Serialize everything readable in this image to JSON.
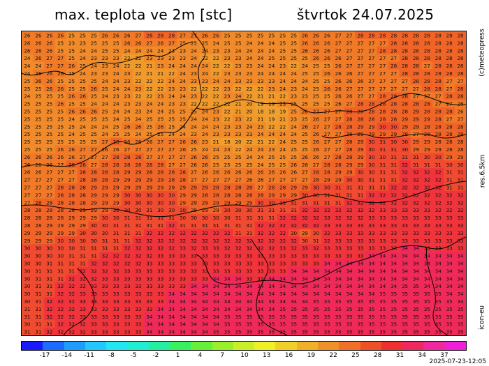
{
  "header": {
    "title": "max. teplota ve 2m [stc]",
    "date": "štvrtok 24.07.2025"
  },
  "side_labels": {
    "copyright": "(c)meteopress",
    "resolution": "res.6.5km",
    "model": "icon-eu"
  },
  "timestamp": "2025-07-23-12:05",
  "legend": {
    "tick_labels": [
      "-17",
      "-14",
      "-11",
      "-8",
      "-5",
      "-2",
      "1",
      "4",
      "7",
      "10",
      "13",
      "16",
      "19",
      "22",
      "25",
      "28",
      "31",
      "34",
      "37"
    ],
    "colors": [
      "#1a1aff",
      "#1e6bff",
      "#1f9dff",
      "#22c8ff",
      "#22e6f0",
      "#21eed0",
      "#22f0a0",
      "#38f060",
      "#66f03a",
      "#99f02a",
      "#c8f028",
      "#f0f028",
      "#f0d028",
      "#f0b028",
      "#f09028",
      "#f07028",
      "#f05028",
      "#f03030",
      "#f02860",
      "#f028a0",
      "#f020d8"
    ]
  },
  "map_data": {
    "rows": [
      "26 26 26 26 25 25 25 26 26 26 27 28 28 28 27 27 26 26 25 25 25 25 25 25 25 26 26 26 27 27 28 28 28 28 28 28 28 28 28 28",
      "26 26 26 25 23 23 25 25 25 26 26 27 26 27 25 25 25 24 25 25 24 24 24 25 25 26 26 26 27 27 27 27 27 28 28 28 28 28 28 28",
      "26 26 26 25 25 24 24 25 25 24 24 24 24 23 23 24 24 23 23 24 24 24 24 25 25 26 26 26 27 27 27 27 28 28 28 28 28 28 28 28",
      "24 26 27 27 25 24 23 23 23 22 22 23 23 23 23 24 22 22 23 23 24 24 25 25 25 25 26 26 26 27 27 27 27 27 28 28 28 28 28 28",
      "24 24 27 27 26 25 24 23 24 22 22 21 23 24 24 24 24 22 22 23 23 24 24 23 22 24 25 25 26 27 27 27 27 28 28 28 27 28 28 28",
      "24 26 26 26 25 24 23 23 24 23 22 21 21 22 24 23 24 22 23 23 23 24 24 24 24 25 25 26 26 26 27 27 27 27 28 28 28 28 28 28",
      "25 26 26 25 25 25 25 24 24 23 22 22 22 24 24 23 23 24 24 23 23 23 23 24 24 24 25 25 26 26 26 27 27 27 27 28 28 28 27 27",
      "25 25 26 26 25 25 26 25 24 24 23 22 22 23 23 22 22 22 23 22 22 22 23 24 23 24 25 26 26 27 27 27 27 27 27 27 28 28 27 28",
      "24 25 25 25 26 26 25 24 23 23 22 22 23 24 24 23 22 22 23 24 22 21 21 22 23 23 25 25 26 26 27 27 28 28 28 27 27 27 28 28",
      "25 25 25 26 25 25 24 24 24 23 23 24 24 23 23 22 22 22 22 21 20 19 19 23 25 25 25 25 26 27 28 28 28 28 28 28 28 27 27 26",
      "25 25 25 25 26 26 26 25 24 24 23 24 24 25 25 25 24 23 22 21 20 18 18 19 25 26 27 27 27 28 28 28 28 28 28 29 28 28 28 26",
      "25 25 25 25 24 25 25 25 24 25 24 25 25 25 25 24 24 23 22 23 22 21 19 21 23 25 26 27 27 28 28 28 28 28 29 29 29 28 27 27",
      "25 25 25 25 25 24 24 24 25 26 26 25 26 25 24 24 24 24 23 23 24 23 22 22 24 26 27 27 28 28 29 29 30 30 29 29 28 28 28 28",
      "25 25 25 25 24 25 25 24 25 25 24 25 25 24 24 23 24 23 23 23 23 24 24 24 24 25 26 27 27 28 29 29 29 29 28 27 28 28 28 28",
      "25 25 25 25 25 25 25 27 28 26 26 26 27 27 26 26 23 21 18 20 22 21 22 24 25 25 26 27 27 28 29 30 31 30 30 29 29 28 28 28",
      "25 25 25 26 26 27 27 26 26 27 27 27 27 27 26 25 24 24 23 22 24 24 23 24 25 25 26 27 27 28 29 30 31 31 30 29 29 29 28 28",
      "26 26 26 26 26 27 27 27 28 28 28 27 27 27 27 26 26 25 25 25 24 24 25 25 25 26 26 27 28 28 29 30 30 31 31 31 30 30 29 29",
      "26 26 26 27 28 28 27 28 28 28 28 28 28 27 27 26 26 25 25 25 25 24 25 25 26 26 27 28 28 29 29 30 31 31 32 31 31 31 30 30",
      "26 26 27 27 27 28 28 28 28 29 29 28 28 28 28 27 26 26 26 26 26 26 26 26 26 27 28 28 29 29 30 30 31 31 32 32 32 32 31 31",
      "27 27 27 27 27 28 28 28 29 29 29 29 29 28 28 27 27 27 27 27 26 26 27 27 27 27 28 29 29 30 30 31 31 31 32 32 32 32 31 31",
      "27 27 27 28 28 28 29 29 29 29 29 29 29 29 29 29 29 28 28 28 28 27 28 28 29 29 30 30 31 31 31 31 31 32 32 32 32 32 31 31",
      "27 27 27 28 28 28 29 29 29 30 30 30 30 30 29 29 28 28 28 28 28 28 29 29 29 30 30 31 31 31 31 32 32 32 32 32 32 32 32 32",
      "27 28 28 28 28 28 29 29 29 30 30 30 30 30 29 29 29 29 29 29 29 30 30 31 31 31 31 31 31 32 32 32 32 32 32 32 32 32 32 32",
      "28 28 28 28 28 29 29 29 30 30 30 31 30 30 30 29 29 29 30 30 30 31 31 31 31 32 32 32 32 32 32 32 33 33 33 33 33 32 32 32",
      "28 28 28 28 29 29 29 30 30 31 31 31 31 31 30 30 30 30 30 31 31 31 31 32 32 32 32 33 32 32 32 33 33 33 33 33 33 33 33 33",
      "28 28 29 29 29 29 30 30 31 31 31 31 31 32 31 31 31 31 31 31 31 32 32 32 32 32 32 33 33 33 33 33 33 33 33 33 33 33 33 33",
      "29 29 29 29 29 30 30 30 31 31 31 32 32 32 32 32 32 32 32 31 31 32 32 32 30 29 30 32 33 33 33 33 33 33 33 33 33 33 33 33",
      "29 29 29 30 30 30 30 31 31 31 32 32 32 32 32 32 32 32 32 32 32 32 32 32 32 30 31 32 33 33 33 33 33 33 33 33 33 33 33 33",
      "30 30 30 30 30 31 31 31 31 32 32 32 32 32 33 32 33 33 32 32 32 32 32 33 32 33 32 33 33 33 33 33 33 33 34 34 33 33 33 33",
      "30 30 30 30 31 31 31 32 32 32 32 32 33 33 33 33 33 33 33 33 33 33 33 33 33 33 33 33 33 33 33 34 34 34 34 34 34 34 34 34",
      "30 30 31 31 31 31 32 32 32 32 32 33 33 33 33 33 33 33 33 33 33 33 33 33 33 33 33 34 34 34 34 34 34 34 34 34 34 34 34 34",
      "30 31 31 31 31 32 32 32 32 33 33 33 33 33 33 33 33 33 33 33 33 33 33 33 34 34 34 34 34 34 34 34 34 34 34 34 34 34 34 34",
      "30 31 31 31 32 32 32 33 33 33 33 33 33 33 33 33 33 34 34 34 33 33 34 34 34 34 34 34 34 34 34 34 34 34 34 34 34 34 34 34",
      "30 31 31 32 32 32 33 33 33 33 33 33 33 33 33 34 34 34 34 34 34 34 34 34 34 34 34 34 34 34 34 34 34 34 35 35 34 34 34 34",
      "30 31 31 32 32 33 33 33 33 33 33 33 33 34 34 34 34 34 34 34 34 34 34 34 34 34 34 34 34 34 34 34 35 35 35 35 35 35 34 34",
      "30 31 32 32 32 33 33 33 33 33 33 33 33 34 34 34 34 34 34 34 34 34 34 34 34 34 35 35 35 35 35 35 35 35 35 35 35 35 35 34",
      "31 31 32 32 32 33 33 33 33 33 33 33 34 34 34 34 34 34 34 34 34 34 34 35 35 35 35 35 35 35 35 35 35 35 35 35 35 35 35 35",
      "31 31 32 32 32 33 33 33 33 33 33 34 34 34 34 34 34 34 35 35 35 35 35 35 35 35 35 35 35 35 35 35 35 35 35 35 35 35 35 35",
      "30 31 31 32 32 32 33 33 33 33 33 34 34 34 34 34 34 34 35 35 35 35 35 35 35 35 35 35 35 35 35 35 35 35 35 35 35 35 35 35",
      "31 31 32 32 32 32 33 33 33 33 33 34 34 34 34 34 34 35 35 35 35 35 35 35 35 35 35 35 35 35 35 35 35 35 35 35 35 35 35 35"
    ]
  }
}
